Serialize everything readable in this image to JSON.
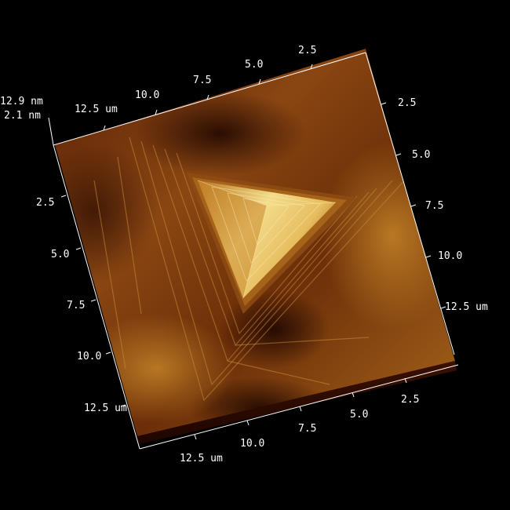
{
  "view": {
    "colors": {
      "background": "#000000",
      "surface_dark": "#3a1002",
      "surface_mid": "#7a3a0c",
      "surface_light": "#c88a2e",
      "peak": "#f3dc8a",
      "axis": "#ffffff"
    }
  },
  "z_scale": {
    "max_label": "12.9 nm",
    "min_label": "2.1 nm"
  },
  "axis_top": {
    "ticks": [
      "12.5 um",
      "10.0",
      "7.5",
      "5.0",
      "2.5"
    ]
  },
  "axis_right": {
    "ticks": [
      "2.5",
      "5.0",
      "7.5",
      "10.0",
      "12.5 um"
    ]
  },
  "axis_left": {
    "ticks": [
      "2.5",
      "5.0",
      "7.5",
      "10.0",
      "12.5 um"
    ]
  },
  "axis_bottom": {
    "ticks": [
      "12.5 um",
      "10.0",
      "7.5",
      "5.0",
      "2.5"
    ]
  }
}
